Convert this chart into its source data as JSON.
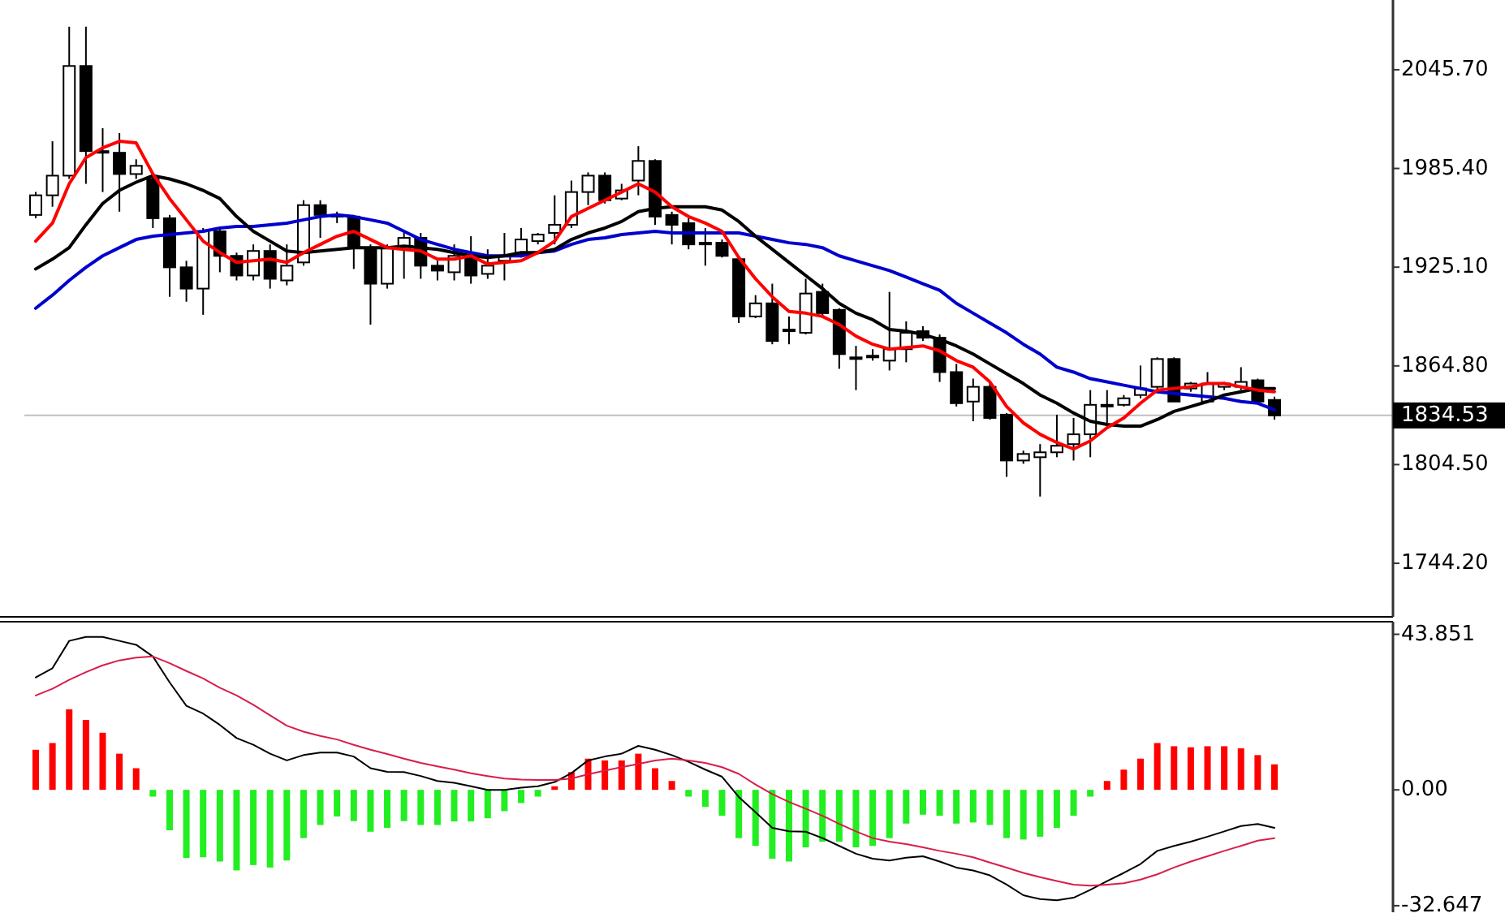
{
  "chart_data": [
    {
      "type": "candlestick",
      "ylim": [
        1711.5,
        2088.3
      ],
      "tick_labels": "y",
      "grid": false,
      "yticks": [
        {
          "value": 2045.7,
          "label": "2045.70"
        },
        {
          "value": 1985.4,
          "label": "1985.40"
        },
        {
          "value": 1925.1,
          "label": "1925.10"
        },
        {
          "value": 1864.8,
          "label": "1864.80"
        },
        {
          "value": 1804.5,
          "label": "1804.50"
        },
        {
          "value": 1744.2,
          "label": "1744.20"
        }
      ],
      "ref_lines": [
        {
          "axis": "y",
          "value": 1834.53,
          "label": "1834.53",
          "color": "#c0c0c0"
        }
      ],
      "categories": [
        null,
        null,
        null,
        null,
        null,
        null,
        null,
        null,
        null,
        null,
        null,
        null,
        null,
        null,
        null,
        null,
        null,
        null,
        null,
        null,
        null,
        null,
        null,
        null,
        null,
        null,
        null,
        null,
        null,
        null,
        null,
        null,
        null,
        null,
        null,
        null,
        null,
        null,
        null,
        null,
        null,
        null,
        null,
        null,
        null,
        null,
        null,
        null,
        null,
        null,
        null,
        null,
        null,
        null,
        null,
        null,
        null,
        null,
        null,
        null,
        null,
        null,
        null,
        null,
        null,
        null,
        null,
        null,
        null,
        null,
        null,
        null,
        null,
        null,
        null
      ],
      "ohlc": [
        [
          1957,
          1971,
          1955,
          1969
        ],
        [
          1969,
          2002,
          1962,
          1981
        ],
        [
          1981,
          2072,
          1979,
          2048
        ],
        [
          2048,
          2072,
          1976,
          1996
        ],
        [
          1996,
          2010,
          1971,
          1995
        ],
        [
          1995,
          2007,
          1959,
          1982
        ],
        [
          1982,
          1991,
          1979,
          1987
        ],
        [
          1979,
          1981,
          1949,
          1955
        ],
        [
          1955,
          1957,
          1907,
          1925
        ],
        [
          1925,
          1929,
          1904,
          1912
        ],
        [
          1912,
          1949,
          1896,
          1947
        ],
        [
          1947,
          1949,
          1922,
          1932
        ],
        [
          1932,
          1934,
          1917,
          1920
        ],
        [
          1920,
          1939,
          1917,
          1935
        ],
        [
          1935,
          1939,
          1912,
          1918
        ],
        [
          1917,
          1939,
          1914,
          1926
        ],
        [
          1928,
          1966,
          1926,
          1963
        ],
        [
          1963,
          1966,
          1943,
          1957
        ],
        [
          1957,
          1959,
          1952,
          1956
        ],
        [
          1956,
          1957,
          1924,
          1937
        ],
        [
          1937,
          1939,
          1890,
          1915
        ],
        [
          1915,
          1939,
          1912,
          1937
        ],
        [
          1938,
          1946,
          1918,
          1943
        ],
        [
          1943,
          1946,
          1918,
          1926
        ],
        [
          1926,
          1929,
          1917,
          1923
        ],
        [
          1922,
          1939,
          1917,
          1932
        ],
        [
          1932,
          1944,
          1915,
          1920
        ],
        [
          1921,
          1936,
          1918,
          1926
        ],
        [
          1929,
          1946,
          1917,
          1932
        ],
        [
          1934,
          1949,
          1931,
          1942
        ],
        [
          1941,
          1946,
          1939,
          1945
        ],
        [
          1946,
          1969,
          1939,
          1951
        ],
        [
          1951,
          1978,
          1949,
          1971
        ],
        [
          1971,
          1983,
          1963,
          1981
        ],
        [
          1981,
          1983,
          1964,
          1966
        ],
        [
          1967,
          1976,
          1966,
          1972
        ],
        [
          1978,
          1999,
          1969,
          1990
        ],
        [
          1990,
          1991,
          1951,
          1956
        ],
        [
          1957,
          1959,
          1939,
          1951
        ],
        [
          1952,
          1955,
          1936,
          1939
        ],
        [
          1940,
          1949,
          1926,
          1939
        ],
        [
          1940,
          1942,
          1931,
          1932
        ],
        [
          1930,
          1931,
          1891,
          1895
        ],
        [
          1895,
          1908,
          1894,
          1903
        ],
        [
          1903,
          1915,
          1878,
          1880
        ],
        [
          1887,
          1895,
          1878,
          1886
        ],
        [
          1885,
          1918,
          1884,
          1909
        ],
        [
          1910,
          1915,
          1894,
          1897
        ],
        [
          1899,
          1900,
          1863,
          1872
        ],
        [
          1870,
          1877,
          1850,
          1869
        ],
        [
          1871,
          1875,
          1868,
          1870
        ],
        [
          1868,
          1910,
          1862,
          1875
        ],
        [
          1875,
          1892,
          1867,
          1885
        ],
        [
          1886,
          1889,
          1880,
          1882
        ],
        [
          1882,
          1884,
          1855,
          1861
        ],
        [
          1861,
          1866,
          1840,
          1842
        ],
        [
          1843,
          1857,
          1831,
          1852
        ],
        [
          1852,
          1855,
          1832,
          1833
        ],
        [
          1835,
          1836,
          1797,
          1807
        ],
        [
          1807,
          1813,
          1805,
          1811
        ],
        [
          1809,
          1817,
          1785,
          1812
        ],
        [
          1812,
          1835,
          1809,
          1816
        ],
        [
          1817,
          1833,
          1807,
          1823
        ],
        [
          1823,
          1850,
          1809,
          1841
        ],
        [
          1841,
          1850,
          1830,
          1841
        ],
        [
          1841,
          1847,
          1840,
          1845
        ],
        [
          1847,
          1865,
          1845,
          1851
        ],
        [
          1852,
          1870,
          1850,
          1869
        ],
        [
          1869,
          1870,
          1843,
          1843
        ],
        [
          1851,
          1855,
          1849,
          1854
        ],
        [
          1843,
          1861,
          1843,
          1854
        ],
        [
          1852,
          1855,
          1850,
          1854
        ],
        [
          1852,
          1864,
          1850,
          1855
        ],
        [
          1856,
          1857,
          1842,
          1843
        ],
        [
          1844,
          1846,
          1832,
          1834.53
        ]
      ],
      "series": [
        {
          "type": "line",
          "color": "#0000cd",
          "values": [
            1900,
            1908,
            1917,
            1925,
            1932,
            1937,
            1942,
            1944,
            1945,
            1946,
            1947,
            1949,
            1950,
            1950,
            1951,
            1952,
            1954,
            1956,
            1957,
            1956,
            1954,
            1952,
            1947,
            1942,
            1939,
            1936,
            1934,
            1932,
            1932,
            1932,
            1934,
            1935,
            1939,
            1942,
            1943,
            1945,
            1946,
            1947,
            1946,
            1946,
            1946,
            1946,
            1946,
            1944,
            1942,
            1940,
            1939,
            1937,
            1932,
            1929,
            1926,
            1923,
            1919,
            1915,
            1911,
            1903,
            1897,
            1891,
            1885,
            1878,
            1872,
            1864,
            1861,
            1857,
            1855,
            1853,
            1851,
            1849,
            1848,
            1847,
            1846,
            1845,
            1843,
            1842,
            1838
          ]
        },
        {
          "type": "line",
          "color": "#000000",
          "values": [
            1924,
            1930,
            1937,
            1951,
            1964,
            1972,
            1977,
            1981,
            1979,
            1976,
            1972,
            1967,
            1956,
            1947,
            1941,
            1935,
            1934,
            1935,
            1936,
            1937,
            1937,
            1937,
            1938,
            1937,
            1936,
            1934,
            1932,
            1931,
            1932,
            1934,
            1934,
            1936,
            1942,
            1946,
            1949,
            1953,
            1959,
            1961,
            1962,
            1962,
            1962,
            1960,
            1953,
            1944,
            1936,
            1928,
            1920,
            1912,
            1903,
            1897,
            1893,
            1887,
            1886,
            1884,
            1881,
            1877,
            1872,
            1866,
            1860,
            1854,
            1847,
            1842,
            1836,
            1831,
            1829,
            1828,
            1828,
            1832,
            1837,
            1840,
            1843,
            1847,
            1849,
            1851,
            1851
          ]
        },
        {
          "type": "line",
          "color": "#ff0000",
          "values": [
            1941,
            1952,
            1976,
            1992,
            1998,
            2002,
            2001,
            1982,
            1967,
            1954,
            1941,
            1934,
            1928,
            1929,
            1930,
            1928,
            1934,
            1939,
            1944,
            1947,
            1942,
            1937,
            1936,
            1935,
            1930,
            1930,
            1932,
            1927,
            1928,
            1929,
            1934,
            1941,
            1956,
            1961,
            1966,
            1971,
            1976,
            1971,
            1962,
            1956,
            1952,
            1947,
            1931,
            1918,
            1907,
            1898,
            1897,
            1895,
            1890,
            1883,
            1878,
            1875,
            1876,
            1877,
            1874,
            1868,
            1864,
            1855,
            1840,
            1830,
            1823,
            1818,
            1814,
            1819,
            1827,
            1833,
            1842,
            1850,
            1851,
            1852,
            1854,
            1854,
            1852,
            1850,
            1849
          ]
        }
      ]
    },
    {
      "type": "bar",
      "ylim": [
        -34.5,
        47.4
      ],
      "tick_labels": "y",
      "grid": false,
      "yticks": [
        {
          "value": 43.851,
          "label": "43.851"
        },
        {
          "value": 0,
          "label": "0.00"
        },
        {
          "value": -32.647,
          "label": "-32.647"
        }
      ],
      "categories": [
        null,
        null,
        null,
        null,
        null,
        null,
        null,
        null,
        null,
        null,
        null,
        null,
        null,
        null,
        null,
        null,
        null,
        null,
        null,
        null,
        null,
        null,
        null,
        null,
        null,
        null,
        null,
        null,
        null,
        null,
        null,
        null,
        null,
        null,
        null,
        null,
        null,
        null,
        null,
        null,
        null,
        null,
        null,
        null,
        null,
        null,
        null,
        null,
        null,
        null,
        null,
        null,
        null,
        null,
        null,
        null,
        null,
        null,
        null,
        null,
        null,
        null,
        null,
        null,
        null,
        null,
        null,
        null,
        null,
        null,
        null,
        null,
        null,
        null,
        null
      ],
      "series": [
        {
          "type": "bar",
          "colors": [
            "#ff0000",
            "#ff0000",
            "#ff0000",
            "#ff0000",
            "#ff0000",
            "#ff0000",
            "#ff0000",
            "#22ee22",
            "#22ee22",
            "#22ee22",
            "#22ee22",
            "#22ee22",
            "#22ee22",
            "#22ee22",
            "#22ee22",
            "#22ee22",
            "#22ee22",
            "#22ee22",
            "#22ee22",
            "#22ee22",
            "#22ee22",
            "#22ee22",
            "#22ee22",
            "#22ee22",
            "#22ee22",
            "#22ee22",
            "#22ee22",
            "#22ee22",
            "#22ee22",
            "#22ee22",
            "#22ee22",
            "#ff0000",
            "#ff0000",
            "#ff0000",
            "#ff0000",
            "#ff0000",
            "#ff0000",
            "#ff0000",
            "#ff0000",
            "#22ee22",
            "#22ee22",
            "#22ee22",
            "#22ee22",
            "#22ee22",
            "#22ee22",
            "#22ee22",
            "#22ee22",
            "#22ee22",
            "#22ee22",
            "#22ee22",
            "#22ee22",
            "#22ee22",
            "#22ee22",
            "#22ee22",
            "#22ee22",
            "#22ee22",
            "#22ee22",
            "#22ee22",
            "#22ee22",
            "#22ee22",
            "#22ee22",
            "#22ee22",
            "#22ee22",
            "#22ee22",
            "#ff0000",
            "#ff0000",
            "#ff0000",
            "#ff0000",
            "#ff0000",
            "#ff0000",
            "#ff0000",
            "#ff0000",
            "#ff0000",
            "#ff0000",
            "#ff0000"
          ],
          "values": [
            11.3,
            13.2,
            22.7,
            19.7,
            16.1,
            10.2,
            6.1,
            -1.9,
            -11.4,
            -19.2,
            -19.0,
            -20.2,
            -22.7,
            -21.2,
            -21.9,
            -19.9,
            -13.6,
            -9.9,
            -7.5,
            -8.8,
            -11.8,
            -10.7,
            -8.8,
            -9.9,
            -9.9,
            -8.9,
            -8.9,
            -8.0,
            -6.0,
            -3.7,
            -1.9,
            1.0,
            5.0,
            8.8,
            8.3,
            8.3,
            10.2,
            6.1,
            2.5,
            -1.9,
            -4.8,
            -7.3,
            -13.6,
            -15.8,
            -19.4,
            -20.2,
            -16.2,
            -14.6,
            -14.6,
            -16.2,
            -15.8,
            -13.6,
            -9.5,
            -7.0,
            -7.3,
            -9.5,
            -9.2,
            -9.9,
            -13.6,
            -14.0,
            -13.2,
            -10.7,
            -7.3,
            -1.9,
            2.5,
            5.7,
            8.8,
            13.2,
            12.3,
            12.0,
            12.3,
            12.3,
            11.7,
            9.8,
            7.2
          ]
        },
        {
          "type": "line",
          "color": "#000000",
          "values": [
            31.7,
            34.3,
            42.0,
            43.1,
            43.1,
            42.0,
            40.9,
            37.6,
            30.3,
            23.7,
            21.5,
            18.3,
            14.6,
            12.7,
            10.2,
            8.3,
            9.8,
            10.5,
            10.5,
            9.4,
            6.1,
            5.1,
            5.0,
            3.9,
            2.5,
            2.0,
            1.0,
            0.0,
            0.0,
            0.6,
            1.0,
            2.2,
            4.7,
            8.3,
            9.4,
            10.2,
            12.4,
            11.3,
            9.8,
            7.9,
            5.7,
            3.7,
            -2.0,
            -6.3,
            -10.7,
            -11.7,
            -11.8,
            -13.6,
            -15.8,
            -18.0,
            -19.4,
            -19.9,
            -19.1,
            -18.7,
            -20.2,
            -21.9,
            -22.7,
            -24.1,
            -26.7,
            -29.7,
            -30.8,
            -31.1,
            -30.4,
            -28.2,
            -25.7,
            -23.4,
            -20.9,
            -17.2,
            -15.8,
            -14.6,
            -13.2,
            -11.7,
            -10.2,
            -9.6,
            -10.7
          ]
        },
        {
          "type": "line",
          "color": "#d81e4a",
          "values": [
            26.6,
            28.5,
            31.0,
            33.2,
            35.1,
            36.5,
            37.3,
            37.6,
            35.7,
            33.5,
            31.4,
            28.8,
            26.6,
            24.0,
            21.0,
            18.1,
            16.4,
            15.2,
            14.2,
            12.7,
            11.3,
            10.1,
            8.8,
            7.6,
            6.6,
            5.7,
            4.7,
            3.9,
            3.2,
            2.9,
            2.8,
            2.8,
            3.2,
            4.4,
            5.4,
            6.4,
            7.3,
            8.3,
            8.8,
            8.3,
            7.6,
            6.4,
            4.5,
            1.5,
            -1.2,
            -3.4,
            -5.3,
            -7.3,
            -9.6,
            -11.7,
            -13.6,
            -14.6,
            -15.3,
            -16.2,
            -17.2,
            -18.0,
            -19.0,
            -20.5,
            -21.9,
            -23.4,
            -24.6,
            -25.7,
            -26.7,
            -27.0,
            -26.7,
            -26.3,
            -25.3,
            -23.8,
            -21.9,
            -20.2,
            -18.7,
            -17.2,
            -15.8,
            -14.3,
            -13.6
          ]
        }
      ]
    }
  ]
}
